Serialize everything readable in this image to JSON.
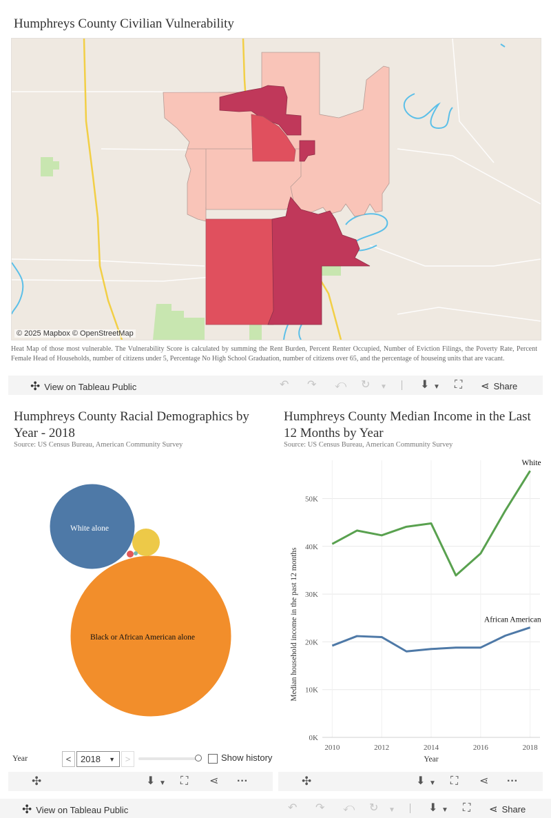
{
  "map_section": {
    "title": "Humphreys County Civilian Vulnerability",
    "attribution": "© 2025 Mapbox  © OpenStreetMap",
    "description": "Heat Map of those most vulnerable. The Vulnerability Score is calculated by summing the Rent Burden, Percent Renter Occupied, Number of Eviction Filings, the Poverty Rate, Percent Female Head of Households, number of citizens under 5, Percentage No High School Graduation, number of citizens over 65, and the percentage of houseing units that are vacant.",
    "colors": {
      "low": "#f9c4b8",
      "mid": "#e0505e",
      "high": "#c0385a",
      "water": "#5bbfe8",
      "park": "#c8e6b0",
      "road": "#f2cf46",
      "land": "#efe9e1"
    }
  },
  "toolbar_top": {
    "view_label": "View on Tableau Public",
    "share_label": "Share"
  },
  "demographics": {
    "title": "Humphreys County Racial Demographics by Year - 2018",
    "source": "Source: US Census Bureau, American Community Survey",
    "bubbles": [
      {
        "label": "White alone",
        "color": "#4e79a7"
      },
      {
        "label": "Black or African American alone",
        "color": "#f28e2b"
      },
      {
        "label": "",
        "color": "#edc948"
      },
      {
        "label": "",
        "color": "#e15759"
      },
      {
        "label": "",
        "color": "#76b7b2"
      }
    ],
    "controls": {
      "year_label": "Year",
      "year_value": "2018",
      "prev_icon": "<",
      "next_icon": ">",
      "show_history_label": "Show history"
    }
  },
  "income": {
    "title": "Humphreys County Median Income in the Last 12 Months by Year",
    "source": "Source: US Census Bureau, American Community Survey"
  },
  "chart_data": {
    "type": "line",
    "title": "Humphreys County Median Income in the Last 12 Months by Year",
    "xlabel": "Year",
    "ylabel": "Median household income in the past 12 months",
    "x": [
      2010,
      2011,
      2012,
      2013,
      2014,
      2015,
      2016,
      2017,
      2018
    ],
    "xticks": [
      "2010",
      "2012",
      "2014",
      "2016",
      "2018"
    ],
    "yticks": [
      "0K",
      "10K",
      "20K",
      "30K",
      "40K",
      "50K"
    ],
    "ylim": [
      0,
      58000
    ],
    "series": [
      {
        "name": "White",
        "color": "#59a14f",
        "values": [
          40500,
          43300,
          42300,
          44100,
          44800,
          33900,
          38500,
          47500,
          55800
        ]
      },
      {
        "name": "African American",
        "color": "#4e79a7",
        "values": [
          19200,
          21200,
          21000,
          18000,
          18500,
          18800,
          18800,
          21300,
          23000
        ]
      }
    ]
  },
  "toolbar_bottom": {
    "view_label": "View on Tableau Public",
    "share_label": "Share"
  }
}
